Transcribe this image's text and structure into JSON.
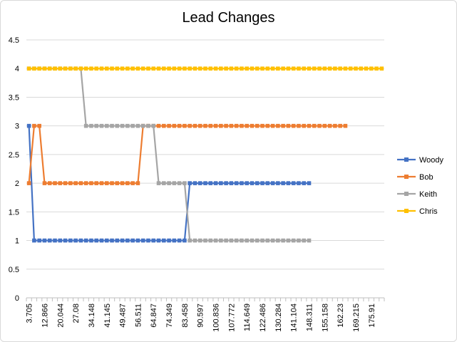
{
  "chart_data": {
    "type": "line",
    "title": "Lead Changes",
    "xlabel": "",
    "ylabel": "",
    "ylim": [
      0,
      4.5
    ],
    "ytick_step": 0.5,
    "grid": true,
    "legend": "right",
    "n_points": 69,
    "x_tick_labels": [
      "3.705",
      "12.866",
      "20.044",
      "27.08",
      "34.148",
      "41.145",
      "49.487",
      "56.511",
      "64.847",
      "74.349",
      "83.458",
      "90.597",
      "100.836",
      "107.772",
      "114.649",
      "122.486",
      "130.284",
      "141.104",
      "148.311",
      "155.158",
      "162.23",
      "169.215",
      "175.91"
    ],
    "series": [
      {
        "name": "Woody",
        "color": "#4472C4",
        "values": [
          3,
          1,
          1,
          1,
          1,
          1,
          1,
          1,
          1,
          1,
          1,
          1,
          1,
          1,
          1,
          1,
          1,
          1,
          1,
          1,
          1,
          1,
          1,
          1,
          1,
          1,
          1,
          1,
          1,
          1,
          1,
          2,
          2,
          2,
          2,
          2,
          2,
          2,
          2,
          2,
          2,
          2,
          2,
          2,
          2,
          2,
          2,
          2,
          2,
          2,
          2,
          2,
          2,
          2,
          2
        ]
      },
      {
        "name": "Bob",
        "color": "#ED7D31",
        "values": [
          2,
          3,
          3,
          2,
          2,
          2,
          2,
          2,
          2,
          2,
          2,
          2,
          2,
          2,
          2,
          2,
          2,
          2,
          2,
          2,
          2,
          2,
          3,
          3,
          3,
          3,
          3,
          3,
          3,
          3,
          3,
          3,
          3,
          3,
          3,
          3,
          3,
          3,
          3,
          3,
          3,
          3,
          3,
          3,
          3,
          3,
          3,
          3,
          3,
          3,
          3,
          3,
          3,
          3,
          3,
          3,
          3,
          3,
          3,
          3,
          3,
          3
        ]
      },
      {
        "name": "Keith",
        "color": "#A5A5A5",
        "values": [
          4,
          4,
          4,
          4,
          4,
          4,
          4,
          4,
          4,
          4,
          4,
          3,
          3,
          3,
          3,
          3,
          3,
          3,
          3,
          3,
          3,
          3,
          3,
          3,
          3,
          2,
          2,
          2,
          2,
          2,
          2,
          1,
          1,
          1,
          1,
          1,
          1,
          1,
          1,
          1,
          1,
          1,
          1,
          1,
          1,
          1,
          1,
          1,
          1,
          1,
          1,
          1,
          1,
          1,
          1
        ],
        "start_index": 0
      },
      {
        "name": "Chris",
        "color": "#FFC000",
        "values": [
          4,
          4,
          4,
          4,
          4,
          4,
          4,
          4,
          4,
          4,
          4,
          4,
          4,
          4,
          4,
          4,
          4,
          4,
          4,
          4,
          4,
          4,
          4,
          4,
          4,
          4,
          4,
          4,
          4,
          4,
          4,
          4,
          4,
          4,
          4,
          4,
          4,
          4,
          4,
          4,
          4,
          4,
          4,
          4,
          4,
          4,
          4,
          4,
          4,
          4,
          4,
          4,
          4,
          4,
          4,
          4,
          4,
          4,
          4,
          4,
          4,
          4,
          4,
          4,
          4,
          4,
          4,
          4,
          4
        ]
      }
    ]
  }
}
